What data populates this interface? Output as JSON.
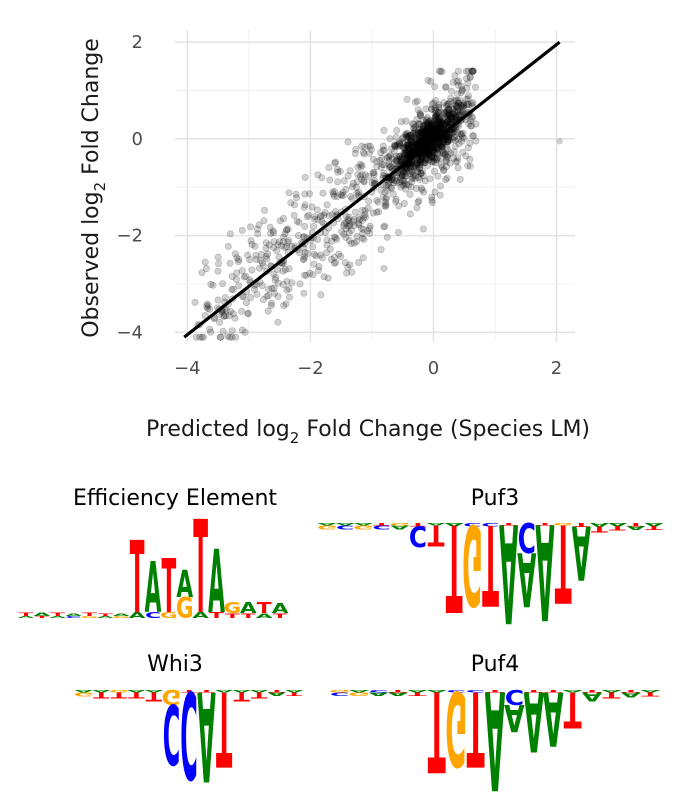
{
  "chart_data": [
    {
      "type": "scatter",
      "title": "",
      "xlabel": "Predicted log2 Fold Change (Species LM)",
      "xlabel_parts": {
        "pre": "Predicted log",
        "sub": "2",
        "post": " Fold Change (Species LM)"
      },
      "ylabel": "Observed log2 Fold Change",
      "ylabel_parts": {
        "pre": "Observed log",
        "sub": "2",
        "post": " Fold Change"
      },
      "xlim": [
        -4.2,
        2.3
      ],
      "ylim": [
        -4.2,
        2.25
      ],
      "x_ticks": [
        -4,
        -2,
        0,
        2
      ],
      "y_ticks": [
        -4,
        -2,
        0,
        2
      ],
      "x_tick_labels": [
        "−4",
        "−2",
        "0",
        "2"
      ],
      "y_tick_labels": [
        "−4",
        "−2",
        "0",
        "2"
      ],
      "grid": true,
      "point_color": "#000000",
      "point_alpha": 0.18,
      "n_points_approx": 1500,
      "fit_line": {
        "x": [
          -4.05,
          2.05
        ],
        "y": [
          -4.1,
          2.0
        ],
        "color": "#000000"
      }
    },
    {
      "type": "sequence-logo",
      "title": "Efficiency Element",
      "direction": "up",
      "columns": [
        [
          [
            "T",
            0.05
          ],
          [
            "A",
            0.03
          ]
        ],
        [
          [
            "A",
            0.05
          ],
          [
            "T",
            0.03
          ]
        ],
        [
          [
            "T",
            0.05
          ],
          [
            "A",
            0.03
          ]
        ],
        [
          [
            "A",
            0.04
          ],
          [
            "C",
            0.03
          ]
        ],
        [
          [
            "T",
            0.05
          ],
          [
            "G",
            0.03
          ]
        ],
        [
          [
            "T",
            0.04
          ],
          [
            "A",
            0.03
          ]
        ],
        [
          [
            "A",
            0.04
          ],
          [
            "G",
            0.03
          ]
        ],
        [
          [
            "T",
            1.2
          ],
          [
            "A",
            0.1
          ]
        ],
        [
          [
            "A",
            0.85
          ],
          [
            "C",
            0.1
          ]
        ],
        [
          [
            "T",
            0.9
          ],
          [
            "G",
            0.1
          ]
        ],
        [
          [
            "A",
            0.45
          ],
          [
            "G",
            0.35
          ]
        ],
        [
          [
            "T",
            1.55
          ],
          [
            "A",
            0.1
          ]
        ],
        [
          [
            "A",
            1.05
          ],
          [
            "T",
            0.1
          ]
        ],
        [
          [
            "G",
            0.18
          ],
          [
            "T",
            0.08
          ]
        ],
        [
          [
            "A",
            0.18
          ],
          [
            "T",
            0.08
          ]
        ],
        [
          [
            "T",
            0.18
          ],
          [
            "A",
            0.08
          ]
        ],
        [
          [
            "A",
            0.16
          ],
          [
            "T",
            0.08
          ]
        ]
      ]
    },
    {
      "type": "sequence-logo",
      "title": "Puf3",
      "direction": "down",
      "columns": [
        [
          [
            "G",
            0.06
          ],
          [
            "A",
            0.04
          ]
        ],
        [
          [
            "C",
            0.06
          ],
          [
            "A",
            0.04
          ]
        ],
        [
          [
            "G",
            0.06
          ],
          [
            "A",
            0.04
          ]
        ],
        [
          [
            "C",
            0.06
          ],
          [
            "T",
            0.04
          ]
        ],
        [
          [
            "A",
            0.06
          ],
          [
            "G",
            0.04
          ]
        ],
        [
          [
            "C",
            0.35
          ],
          [
            "T",
            0.05
          ]
        ],
        [
          [
            "T",
            0.35
          ],
          [
            "A",
            0.04
          ]
        ],
        [
          [
            "T",
            1.45
          ],
          [
            "A",
            0.05
          ]
        ],
        [
          [
            "G",
            1.35
          ],
          [
            "C",
            0.05
          ]
        ],
        [
          [
            "T",
            1.35
          ],
          [
            "C",
            0.05
          ]
        ],
        [
          [
            "A",
            1.65
          ],
          [
            "T",
            0.04
          ]
        ],
        [
          [
            "C",
            0.5
          ],
          [
            "A",
            0.9
          ]
        ],
        [
          [
            "A",
            1.6
          ],
          [
            "T",
            0.04
          ]
        ],
        [
          [
            "T",
            1.3
          ],
          [
            "G",
            0.04
          ]
        ],
        [
          [
            "A",
            0.9
          ],
          [
            "T",
            0.06
          ]
        ],
        [
          [
            "T",
            0.1
          ],
          [
            "A",
            0.06
          ]
        ],
        [
          [
            "T",
            0.08
          ],
          [
            "A",
            0.05
          ]
        ],
        [
          [
            "A",
            0.06
          ],
          [
            "T",
            0.05
          ]
        ],
        [
          [
            "T",
            0.06
          ],
          [
            "A",
            0.05
          ]
        ]
      ]
    },
    {
      "type": "sequence-logo",
      "title": "Whi3",
      "direction": "down",
      "columns": [
        [
          [
            "G",
            0.06
          ],
          [
            "A",
            0.04
          ]
        ],
        [
          [
            "T",
            0.1
          ],
          [
            "A",
            0.04
          ]
        ],
        [
          [
            "T",
            0.1
          ],
          [
            "G",
            0.04
          ]
        ],
        [
          [
            "T",
            0.1
          ],
          [
            "A",
            0.04
          ]
        ],
        [
          [
            "T",
            0.15
          ],
          [
            "A",
            0.04
          ]
        ],
        [
          [
            "G",
            0.25
          ],
          [
            "C",
            1.0
          ]
        ],
        [
          [
            "C",
            1.45
          ],
          [
            "T",
            0.04
          ]
        ],
        [
          [
            "A",
            1.5
          ],
          [
            "T",
            0.04
          ]
        ],
        [
          [
            "T",
            1.25
          ],
          [
            "A",
            0.04
          ]
        ],
        [
          [
            "T",
            0.15
          ],
          [
            "A",
            0.04
          ]
        ],
        [
          [
            "T",
            0.1
          ],
          [
            "A",
            0.04
          ]
        ],
        [
          [
            "A",
            0.05
          ],
          [
            "T",
            0.04
          ]
        ],
        [
          [
            "T",
            0.05
          ],
          [
            "A",
            0.04
          ]
        ]
      ]
    },
    {
      "type": "sequence-logo",
      "title": "Puf4",
      "direction": "down",
      "columns": [
        [
          [
            "C",
            0.05
          ],
          [
            "G",
            0.04
          ]
        ],
        [
          [
            "G",
            0.05
          ],
          [
            "A",
            0.04
          ]
        ],
        [
          [
            "A",
            0.05
          ],
          [
            "C",
            0.04
          ]
        ],
        [
          [
            "A",
            0.05
          ],
          [
            "T",
            0.04
          ]
        ],
        [
          [
            "T",
            0.05
          ],
          [
            "A",
            0.04
          ]
        ],
        [
          [
            "T",
            1.35
          ],
          [
            "A",
            0.04
          ]
        ],
        [
          [
            "G",
            1.25
          ],
          [
            "C",
            0.04
          ]
        ],
        [
          [
            "T",
            1.25
          ],
          [
            "C",
            0.04
          ]
        ],
        [
          [
            "A",
            1.65
          ],
          [
            "T",
            0.04
          ]
        ],
        [
          [
            "C",
            0.25
          ],
          [
            "A",
            0.45
          ]
        ],
        [
          [
            "A",
            1.0
          ],
          [
            "T",
            0.04
          ]
        ],
        [
          [
            "A",
            0.9
          ],
          [
            "T",
            0.04
          ]
        ],
        [
          [
            "T",
            0.6
          ],
          [
            "A",
            0.04
          ]
        ],
        [
          [
            "A",
            0.15
          ],
          [
            "T",
            0.04
          ]
        ],
        [
          [
            "T",
            0.1
          ],
          [
            "A",
            0.04
          ]
        ],
        [
          [
            "A",
            0.08
          ],
          [
            "T",
            0.04
          ]
        ],
        [
          [
            "T",
            0.06
          ],
          [
            "A",
            0.04
          ]
        ]
      ]
    }
  ],
  "base_colors": {
    "A": "#008000",
    "C": "#0000ff",
    "G": "#ffa500",
    "T": "#ff0000"
  }
}
